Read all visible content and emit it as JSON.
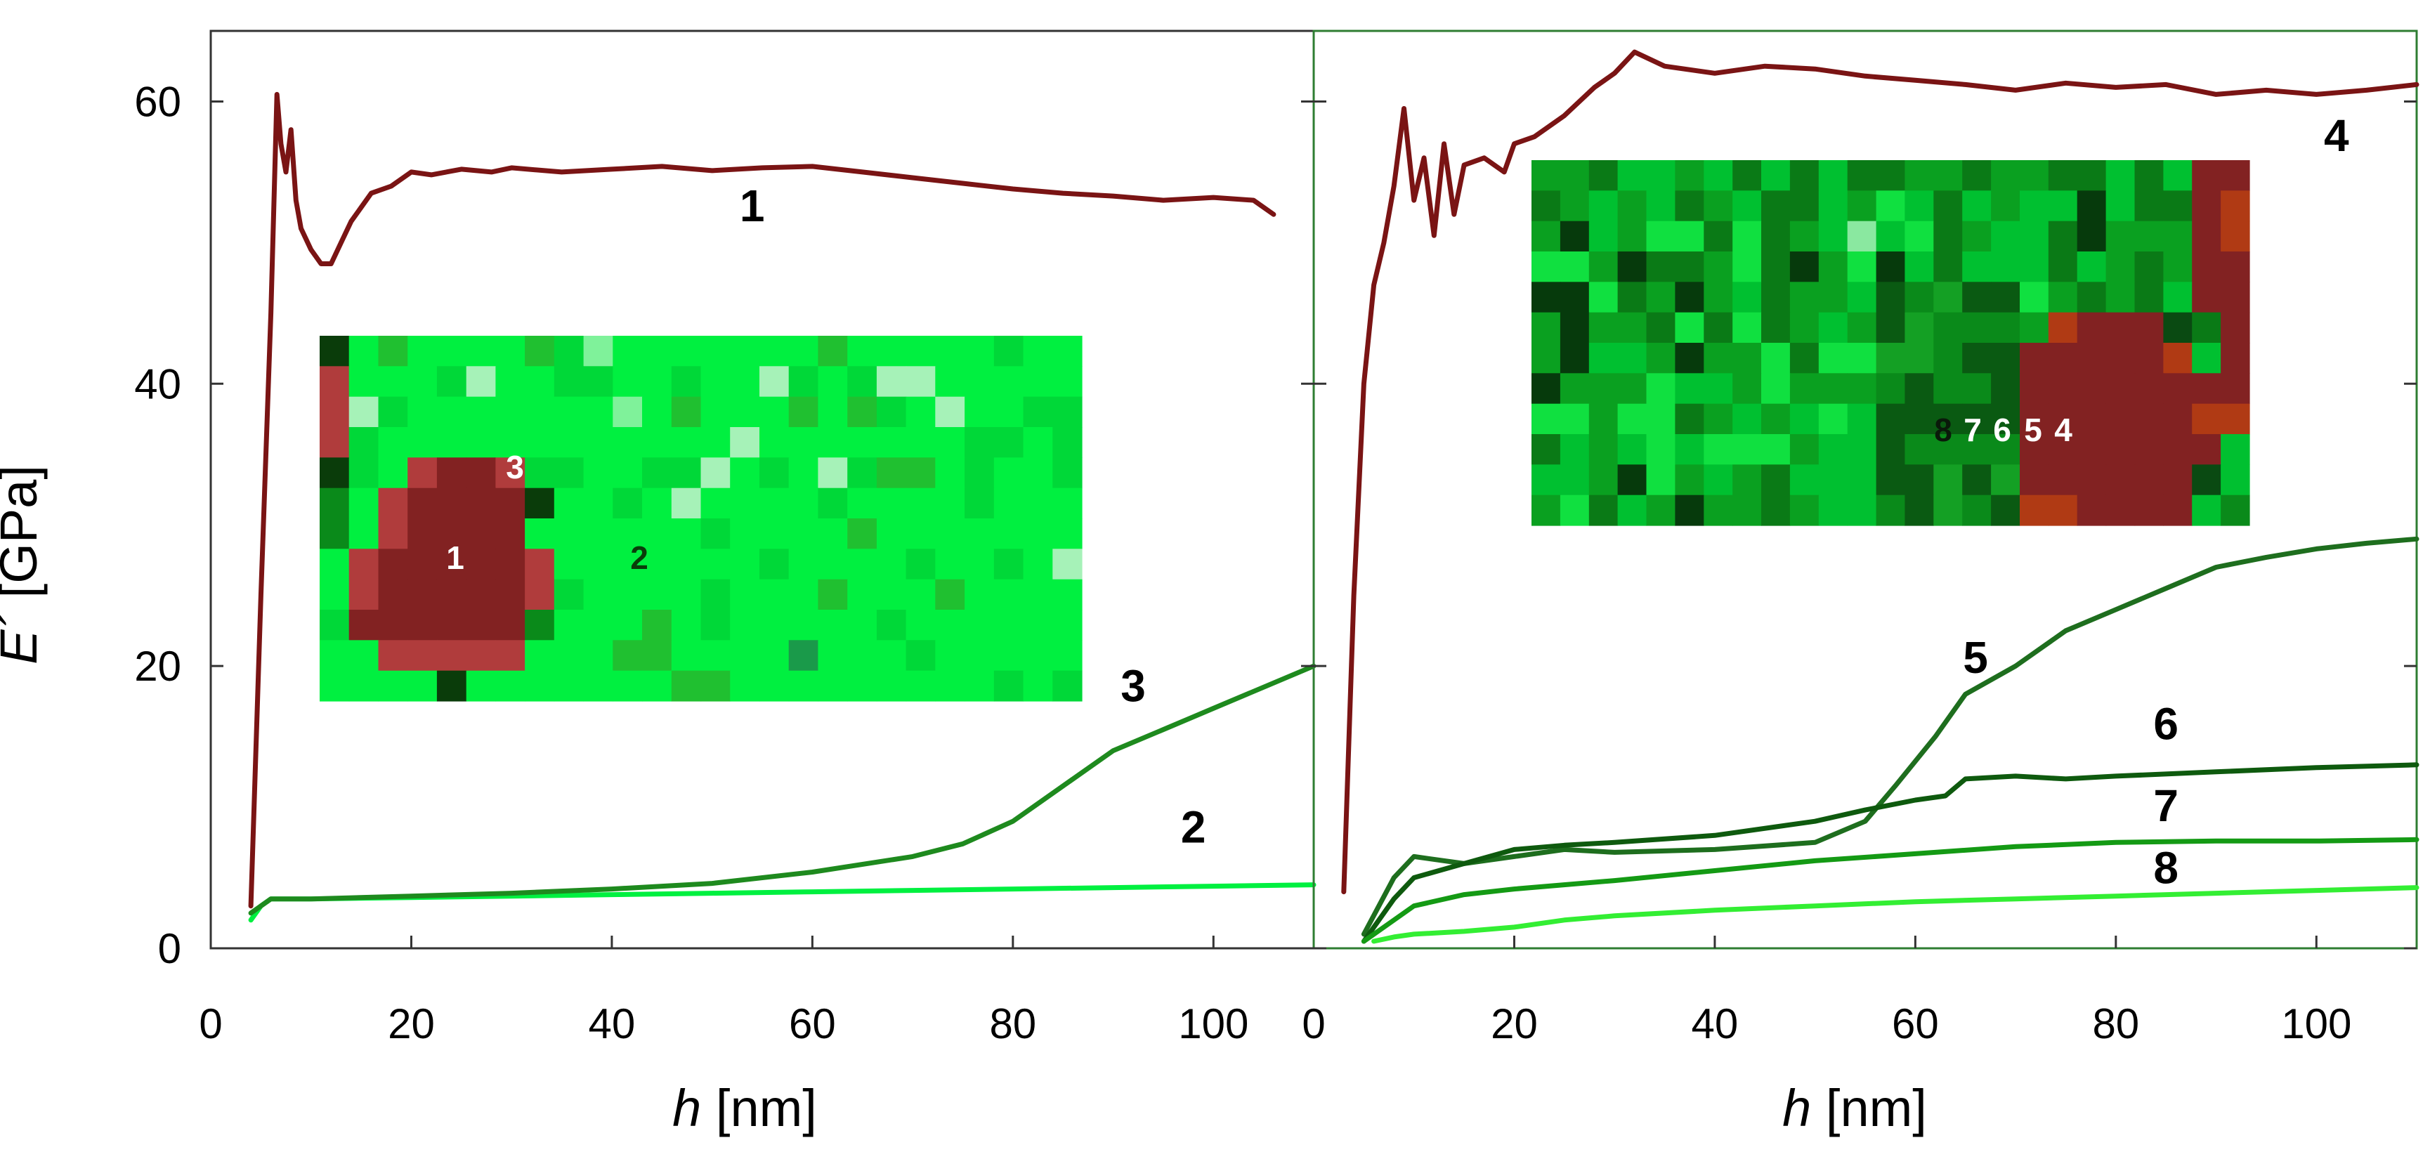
{
  "chart_data": [
    {
      "type": "line",
      "panel": "left",
      "xlabel": "h",
      "xlabel_unit": "[nm]",
      "ylabel": "E´",
      "ylabel_unit": "[GPa]",
      "xlim": [
        0,
        110
      ],
      "ylim": [
        0,
        65
      ],
      "xticks": [
        0,
        20,
        40,
        60,
        80,
        100
      ],
      "yticks": [
        0,
        20,
        40,
        60
      ],
      "series": [
        {
          "name": "1",
          "color": "#7a1414",
          "x": [
            4,
            5,
            6,
            6.6,
            7,
            7.5,
            8,
            8.5,
            9,
            10,
            11,
            12,
            13,
            14,
            15,
            16,
            18,
            20,
            22,
            25,
            28,
            30,
            35,
            40,
            45,
            50,
            55,
            60,
            65,
            70,
            75,
            80,
            85,
            90,
            95,
            100,
            104,
            106
          ],
          "y": [
            3,
            25,
            45,
            60.5,
            57,
            55,
            58,
            53,
            51,
            49.5,
            48.5,
            48.5,
            50,
            51.5,
            52.5,
            53.5,
            54,
            55,
            54.8,
            55.2,
            55,
            55.3,
            55,
            55.2,
            55.4,
            55.1,
            55.3,
            55.4,
            55,
            54.6,
            54.2,
            53.8,
            53.5,
            53.3,
            53,
            53.2,
            53,
            52
          ]
        },
        {
          "name": "2",
          "color": "#00f040",
          "x": [
            4,
            5,
            6,
            8,
            10,
            20,
            30,
            40,
            50,
            60,
            70,
            80,
            90,
            100,
            110
          ],
          "y": [
            2,
            3,
            3.5,
            3.5,
            3.5,
            3.6,
            3.7,
            3.8,
            3.9,
            4,
            4.1,
            4.2,
            4.3,
            4.4,
            4.5
          ]
        },
        {
          "name": "3",
          "color": "#1e8a1e",
          "x": [
            4,
            6,
            10,
            20,
            30,
            40,
            50,
            60,
            70,
            75,
            80,
            85,
            90,
            95,
            100,
            105,
            110
          ],
          "y": [
            2.5,
            3.5,
            3.5,
            3.7,
            3.9,
            4.2,
            4.6,
            5.4,
            6.5,
            7.4,
            9,
            11.5,
            14,
            15.5,
            17,
            18.5,
            20
          ]
        }
      ],
      "labels": [
        {
          "text": "1",
          "x": 54,
          "y": 51.5
        },
        {
          "text": "2",
          "x": 98,
          "y": 7.5
        },
        {
          "text": "3",
          "x": 92,
          "y": 17.5
        }
      ],
      "map_labels": [
        "1",
        "2",
        "3"
      ]
    },
    {
      "type": "line",
      "panel": "right",
      "xlabel": "h",
      "xlabel_unit": "[nm]",
      "xlim": [
        0,
        110
      ],
      "ylim": [
        0,
        65
      ],
      "xticks": [
        0,
        20,
        40,
        60,
        80,
        100
      ],
      "series": [
        {
          "name": "4",
          "color": "#7a1414",
          "x": [
            3,
            4,
            5,
            6,
            7,
            8,
            9,
            10,
            11,
            12,
            13,
            14,
            15,
            17,
            19,
            20,
            22,
            25,
            28,
            30,
            32,
            35,
            40,
            45,
            50,
            55,
            60,
            65,
            70,
            75,
            80,
            85,
            90,
            95,
            100,
            105,
            110
          ],
          "y": [
            4,
            25,
            40,
            47,
            50,
            54,
            59.5,
            53,
            56,
            50.5,
            57,
            52,
            55.5,
            56,
            55,
            57,
            57.5,
            59,
            61,
            62,
            63.5,
            62.5,
            62,
            62.5,
            62.3,
            61.8,
            61.5,
            61.2,
            60.8,
            61.3,
            61,
            61.2,
            60.5,
            60.8,
            60.5,
            60.8,
            61.2
          ]
        },
        {
          "name": "5",
          "color": "#1e6e1e",
          "x": [
            5,
            8,
            10,
            15,
            20,
            25,
            30,
            40,
            50,
            55,
            58,
            62,
            65,
            70,
            75,
            80,
            85,
            90,
            95,
            100,
            105,
            110
          ],
          "y": [
            1,
            5,
            6.5,
            6,
            6.5,
            7,
            6.8,
            7,
            7.5,
            9,
            11.5,
            15,
            18,
            20,
            22.5,
            24,
            25.5,
            27,
            27.7,
            28.3,
            28.7,
            29
          ]
        },
        {
          "name": "6",
          "color": "#0e5a0e",
          "x": [
            5,
            8,
            10,
            15,
            20,
            25,
            30,
            40,
            50,
            55,
            60,
            63,
            65,
            70,
            75,
            80,
            90,
            100,
            110
          ],
          "y": [
            0.5,
            3.5,
            5,
            6,
            7,
            7.3,
            7.5,
            8,
            9,
            9.8,
            10.5,
            10.8,
            12,
            12.2,
            12,
            12.2,
            12.5,
            12.8,
            13
          ]
        },
        {
          "name": "7",
          "color": "#149a14",
          "x": [
            5,
            8,
            10,
            15,
            20,
            30,
            40,
            50,
            60,
            70,
            80,
            90,
            100,
            110
          ],
          "y": [
            0.5,
            2,
            3,
            3.8,
            4.2,
            4.8,
            5.5,
            6.2,
            6.7,
            7.2,
            7.5,
            7.6,
            7.6,
            7.7
          ]
        },
        {
          "name": "8",
          "color": "#33ee33",
          "x": [
            6,
            8,
            10,
            15,
            20,
            25,
            30,
            40,
            50,
            60,
            70,
            80,
            90,
            100,
            110
          ],
          "y": [
            0.5,
            0.8,
            1,
            1.2,
            1.5,
            2,
            2.3,
            2.7,
            3,
            3.3,
            3.5,
            3.7,
            3.9,
            4.1,
            4.3
          ]
        }
      ],
      "labels": [
        {
          "text": "4",
          "x": 102,
          "y": 56.5
        },
        {
          "text": "5",
          "x": 66,
          "y": 19.5
        },
        {
          "text": "6",
          "x": 85,
          "y": 14.8
        },
        {
          "text": "7",
          "x": 85,
          "y": 9
        },
        {
          "text": "8",
          "x": 85,
          "y": 4.6
        }
      ],
      "map_labels": [
        "8",
        "7",
        "6",
        "5",
        "4"
      ]
    }
  ],
  "colors": {
    "stiff": "#7a1414",
    "map_red": "#822222",
    "map_light_green": "#00f040"
  }
}
